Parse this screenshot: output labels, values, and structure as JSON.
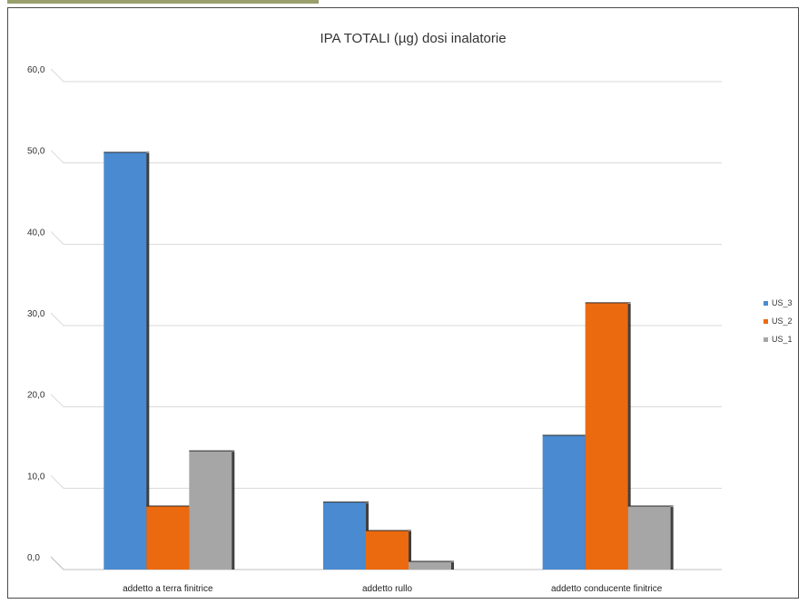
{
  "chart_data": {
    "type": "bar",
    "title": "IPA TOTALI (µg) dosi inalatorie",
    "xlabel": "",
    "ylabel": "",
    "ylim": [
      0,
      60
    ],
    "yticks": [
      "0,0",
      "10,0",
      "20,0",
      "30,0",
      "40,0",
      "50,0",
      "60,0"
    ],
    "grid": true,
    "legend_position": "right",
    "categories": [
      "addetto a terra finitrice",
      "addetto rullo",
      "addetto conducente finitrice"
    ],
    "series": [
      {
        "name": "US_3",
        "color": "#4a8ad0",
        "values": [
          51.3,
          8.3,
          16.5
        ]
      },
      {
        "name": "US_2",
        "color": "#eb6a10",
        "values": [
          7.8,
          4.8,
          32.8
        ]
      },
      {
        "name": "US_1",
        "color": "#a6a6a6",
        "values": [
          14.6,
          1.0,
          7.8
        ]
      }
    ],
    "legend_order": [
      0,
      1,
      2
    ]
  }
}
